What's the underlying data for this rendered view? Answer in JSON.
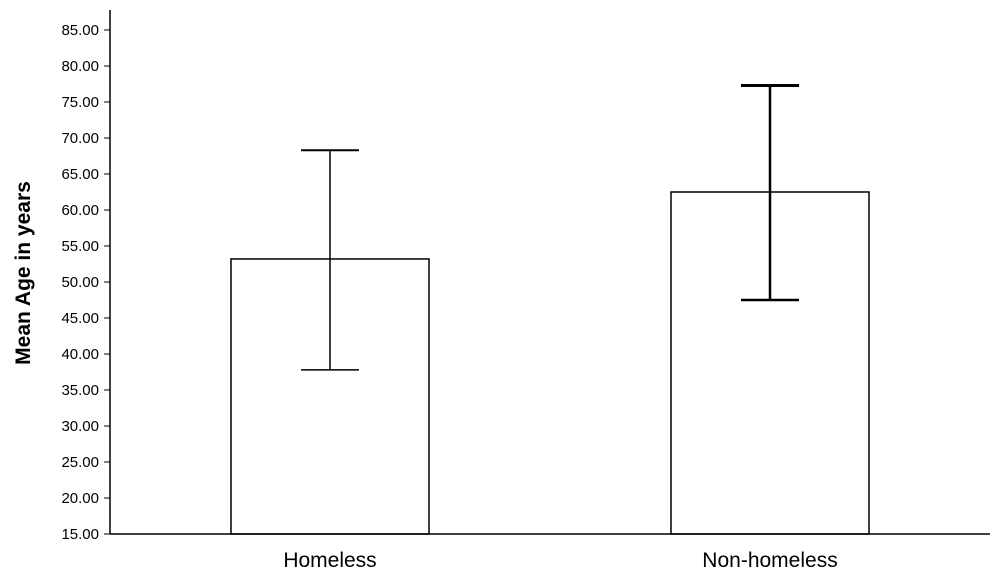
{
  "chart_data": {
    "type": "bar",
    "title": "",
    "xlabel": "",
    "ylabel": "Mean Age in years",
    "categories": [
      "Homeless",
      "Non-homeless"
    ],
    "values": [
      53.2,
      62.5
    ],
    "error_bars": [
      {
        "low": 37.8,
        "high": 68.3
      },
      {
        "low": 47.5,
        "high": 77.3
      }
    ],
    "ylim": [
      15,
      85
    ],
    "yticks": [
      "15.00",
      "20.00",
      "25.00",
      "30.00",
      "35.00",
      "40.00",
      "45.00",
      "50.00",
      "55.00",
      "60.00",
      "65.00",
      "70.00",
      "75.00",
      "80.00",
      "85.00"
    ],
    "grid": false,
    "legend": "none",
    "colors": {
      "bar_fill": "#ffffff",
      "stroke": "#000000"
    }
  }
}
